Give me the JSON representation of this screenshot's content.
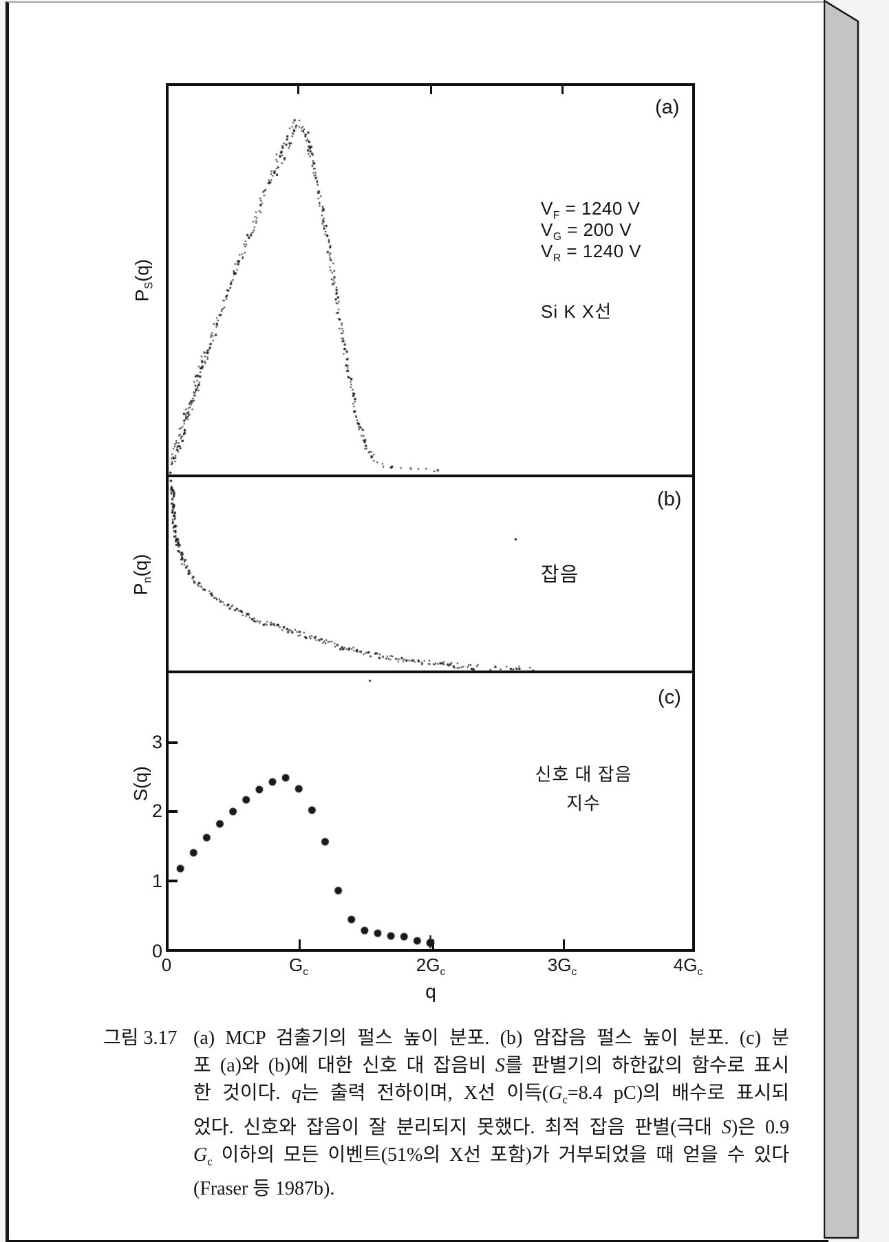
{
  "page": {
    "background": "#f4f4f6",
    "paper_color": "#ffffff",
    "page_edge_color": "#c4c4c6",
    "ink_color": "#161616"
  },
  "figure": {
    "panel_a": {
      "tag": "(a)",
      "y_label_tokens": [
        {
          "t": "P"
        },
        {
          "t": "S",
          "s": "sub"
        },
        {
          "t": "(q)"
        }
      ],
      "voltages": [
        [
          {
            "t": "V"
          },
          {
            "t": "F",
            "s": "sub"
          },
          {
            "t": " = 1240 V"
          }
        ],
        [
          {
            "t": "V"
          },
          {
            "t": "G",
            "s": "sub"
          },
          {
            "t": " = 200 V"
          }
        ],
        [
          {
            "t": "V"
          },
          {
            "t": "R",
            "s": "sub"
          },
          {
            "t": " = 1240 V"
          }
        ]
      ],
      "xray_label": "Si K X선"
    },
    "panel_b": {
      "tag": "(b)",
      "y_label_tokens": [
        {
          "t": "P"
        },
        {
          "t": "n",
          "s": "sub"
        },
        {
          "t": "(q)"
        }
      ],
      "annotation": "잡음"
    },
    "panel_c": {
      "tag": "(c)",
      "y_label": "S(q)",
      "annotation_line1": "신호 대 잡음",
      "annotation_line2": "지수",
      "y_tick_labels": [
        "3",
        "2",
        "1"
      ],
      "origin_y_label": "0"
    },
    "x_axis": {
      "ticks": [
        [
          {
            "t": "0"
          }
        ],
        [
          {
            "t": "G"
          },
          {
            "t": "c",
            "s": "sub"
          }
        ],
        [
          {
            "t": "2G"
          },
          {
            "t": "c",
            "s": "sub"
          }
        ],
        [
          {
            "t": "3G"
          },
          {
            "t": "c",
            "s": "sub"
          }
        ],
        [
          {
            "t": "4G"
          },
          {
            "t": "c",
            "s": "sub"
          }
        ]
      ],
      "label": "q"
    }
  },
  "caption": {
    "label": "그림 3.17",
    "lines": [
      [
        {
          "t": "(a) MCP 검출기의 펄스 높이 분포. (b) 암잡음 펄스 높이 분포. (c) 분"
        }
      ],
      [
        {
          "t": "포 (a)와 (b)에 대한 신호 대 잡음비 "
        },
        {
          "t": "S",
          "s": "i"
        },
        {
          "t": "를 판별기의 하한값의 함수로 표시"
        }
      ],
      [
        {
          "t": "한 것이다. "
        },
        {
          "t": "q",
          "s": "i"
        },
        {
          "t": "는 출력 전하이며, X선 이득("
        },
        {
          "t": "G",
          "s": "i"
        },
        {
          "t": "c",
          "s": "sub"
        },
        {
          "t": "=8.4 pC)의 배수로 표시되"
        }
      ],
      [
        {
          "t": "었다. 신호와 잡음이 잘 분리되지 못했다. 최적 잡음 판별(극대 "
        },
        {
          "t": "S",
          "s": "i"
        },
        {
          "t": ")은 0.9"
        }
      ],
      [
        {
          "t": "G",
          "s": "i"
        },
        {
          "t": "c",
          "s": "sub"
        },
        {
          "t": " 이하의 모든 이벤트(51%의 X선 포함)가 거부되었을 때 얻을 수 있다"
        }
      ],
      [
        {
          "t": "(Fraser 등 1987b)."
        }
      ]
    ]
  },
  "chart_data": [
    {
      "panel": "a",
      "type": "scatter",
      "description": "MCP 검출기 신호 펄스 높이 분포 (Si K X선), 점 산포 곡선",
      "x_unit": "q in multiples of Gc",
      "xlim": [
        0,
        4
      ],
      "ylabel": "Ps(q)",
      "annotations": [
        "VF = 1240 V",
        "VG = 200 V",
        "VR = 1240 V",
        "Si K X선"
      ],
      "peak_q": 1.0,
      "profile_q": [
        0.03,
        0.06,
        0.1,
        0.15,
        0.2,
        0.26,
        0.33,
        0.4,
        0.47,
        0.54,
        0.61,
        0.68,
        0.75,
        0.82,
        0.89,
        0.95,
        1.0,
        1.05,
        1.1,
        1.16,
        1.22,
        1.28,
        1.34,
        1.4,
        1.46,
        1.52,
        1.58,
        1.65,
        1.8,
        1.95,
        2.08
      ],
      "profile_p": [
        0.02,
        0.06,
        0.11,
        0.17,
        0.23,
        0.3,
        0.38,
        0.46,
        0.53,
        0.6,
        0.67,
        0.74,
        0.81,
        0.87,
        0.93,
        0.975,
        1.0,
        0.96,
        0.88,
        0.77,
        0.64,
        0.5,
        0.36,
        0.23,
        0.13,
        0.06,
        0.03,
        0.018,
        0.012,
        0.008,
        0.006
      ]
    },
    {
      "panel": "b",
      "type": "scatter",
      "description": "암잡음 펄스 높이 분포 (단조 감소 곡선)",
      "x_unit": "q in multiples of Gc",
      "xlim": [
        0,
        4
      ],
      "ylabel": "Pn(q)",
      "annotation": "잡음",
      "profile_q": [
        0.03,
        0.04,
        0.05,
        0.065,
        0.09,
        0.115,
        0.13,
        0.165,
        0.205,
        0.27,
        0.35,
        0.43,
        0.51,
        0.6,
        0.7,
        0.85,
        1.0,
        1.15,
        1.29,
        1.45,
        1.6,
        1.84,
        2.05,
        2.25,
        2.44,
        2.6,
        2.8
      ],
      "profile_p": [
        1.0,
        0.88,
        0.78,
        0.7,
        0.645,
        0.6,
        0.57,
        0.52,
        0.48,
        0.44,
        0.4,
        0.36,
        0.33,
        0.295,
        0.265,
        0.23,
        0.195,
        0.165,
        0.13,
        0.1,
        0.075,
        0.05,
        0.032,
        0.018,
        0.009,
        0.005,
        0.003
      ],
      "outliers": [
        {
          "q": 2.64,
          "p": 0.71
        }
      ]
    },
    {
      "panel": "c",
      "type": "scatter",
      "description": "신호 대 잡음 지수 S(q)",
      "xlabel": "q",
      "ylabel": "S(q)",
      "xlim": [
        0,
        4
      ],
      "ylim": [
        0,
        4.05
      ],
      "yticks": [
        1,
        2,
        3
      ],
      "xtick_labels": [
        "0",
        "Gc",
        "2Gc",
        "3Gc",
        "4Gc"
      ],
      "x": [
        0.1,
        0.2,
        0.3,
        0.4,
        0.5,
        0.6,
        0.7,
        0.8,
        0.9,
        1.0,
        1.1,
        1.2,
        1.3,
        1.4,
        1.5,
        1.6,
        1.7,
        1.8,
        1.9,
        2.0
      ],
      "S": [
        1.17,
        1.4,
        1.62,
        1.82,
        2.0,
        2.17,
        2.32,
        2.43,
        2.49,
        2.33,
        2.02,
        1.56,
        0.85,
        0.43,
        0.27,
        0.23,
        0.19,
        0.18,
        0.12,
        0.09
      ],
      "last_point_error_bar": true,
      "stray": [
        {
          "q": 1.54,
          "S": 3.9
        }
      ]
    }
  ]
}
